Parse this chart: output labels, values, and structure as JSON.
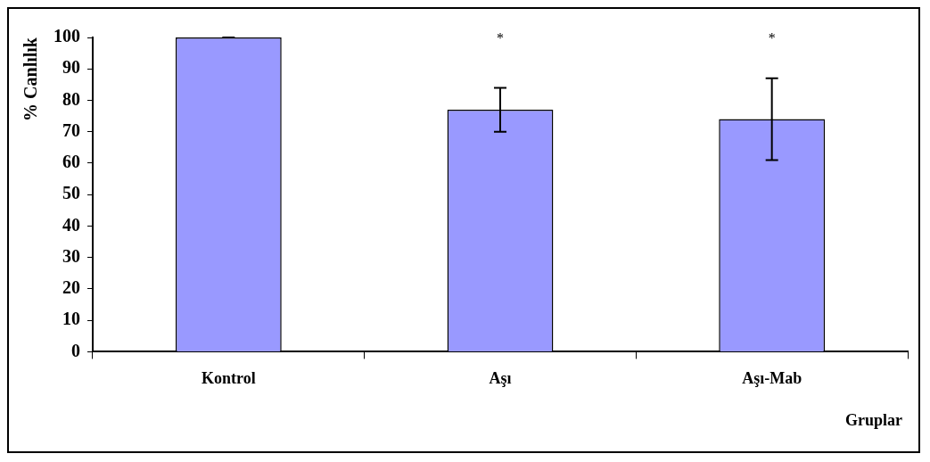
{
  "chart_data": {
    "type": "bar",
    "ylabel": "% Canlılık",
    "xlabel": "Gruplar",
    "categories": [
      "Kontrol",
      "Aşı",
      "Aşı-Mab"
    ],
    "values": [
      100,
      77,
      74
    ],
    "errors": [
      0,
      7,
      13
    ],
    "color": "#9999ff",
    "ylim": [
      0,
      100
    ],
    "yticks": [
      0,
      10,
      20,
      30,
      40,
      50,
      60,
      70,
      80,
      90,
      100
    ],
    "grid": false,
    "legend": false,
    "annotations": [
      "*",
      "*"
    ]
  }
}
